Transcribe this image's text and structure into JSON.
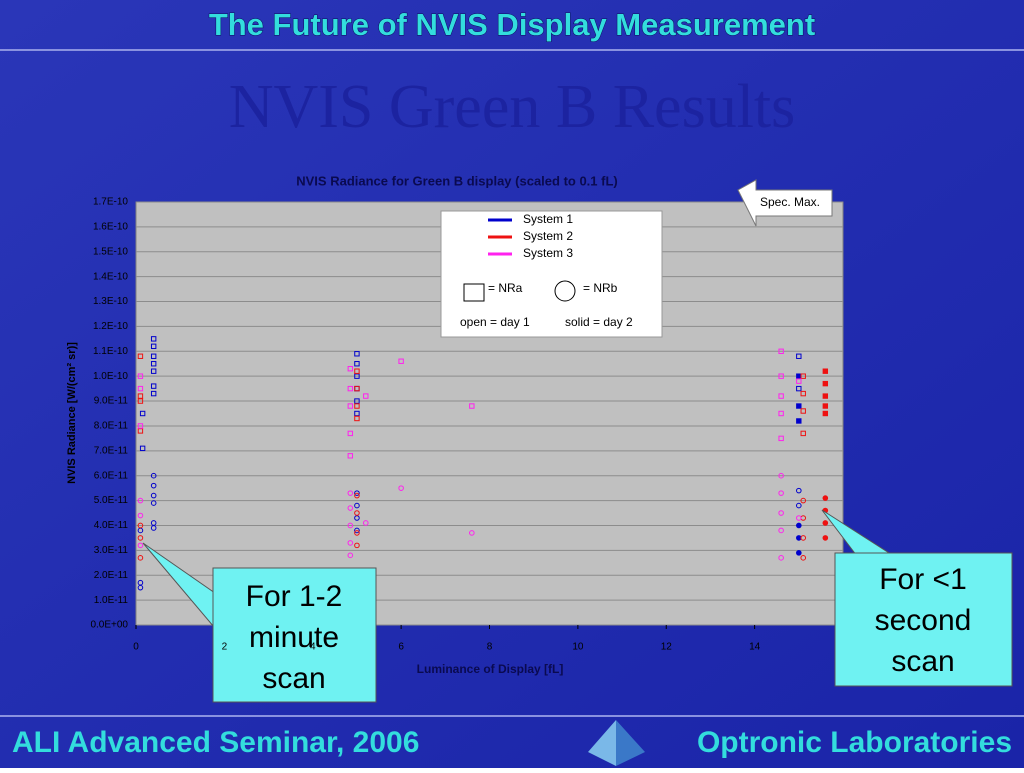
{
  "slide": {
    "header": "The Future of NVIS Display Measurement",
    "subtitle": "NVIS Green B Results",
    "footer_left": "ALI Advanced Seminar, 2006",
    "footer_right": "Optronic Laboratories",
    "callouts": [
      {
        "lines": [
          "For 1-2",
          "minute",
          "scan"
        ]
      },
      {
        "lines": [
          "For <1",
          "second",
          "scan"
        ]
      }
    ]
  },
  "chart_data": {
    "type": "scatter",
    "title": "NVIS Radiance for Green B display (scaled to 0.1 fL)",
    "xlabel": "Luminance of Display [fL]",
    "ylabel": "NVIS Radiance [W/(cm² sr)]",
    "annotation": "Spec. Max.",
    "xlim": [
      0,
      16
    ],
    "xticks": [
      0,
      2,
      4,
      6,
      8,
      10,
      12,
      14
    ],
    "ylim": [
      0,
      1.7e-10
    ],
    "yticks": [
      {
        "value": 0,
        "label": "0.0E+00"
      },
      {
        "value": 1e-11,
        "label": "1.0E-11"
      },
      {
        "value": 2e-11,
        "label": "2.0E-11"
      },
      {
        "value": 3e-11,
        "label": "3.0E-11"
      },
      {
        "value": 4e-11,
        "label": "4.0E-11"
      },
      {
        "value": 5e-11,
        "label": "5.0E-11"
      },
      {
        "value": 6e-11,
        "label": "6.0E-11"
      },
      {
        "value": 7e-11,
        "label": "7.0E-11"
      },
      {
        "value": 8e-11,
        "label": "8.0E-11"
      },
      {
        "value": 9e-11,
        "label": "9.0E-11"
      },
      {
        "value": 1e-10,
        "label": "1.0E-10"
      },
      {
        "value": 1.1e-10,
        "label": "1.1E-10"
      },
      {
        "value": 1.2e-10,
        "label": "1.2E-10"
      },
      {
        "value": 1.3e-10,
        "label": "1.3E-10"
      },
      {
        "value": 1.4e-10,
        "label": "1.4E-10"
      },
      {
        "value": 1.5e-10,
        "label": "1.5E-10"
      },
      {
        "value": 1.6e-10,
        "label": "1.6E-10"
      },
      {
        "value": 1.7e-10,
        "label": "1.7E-10"
      }
    ],
    "grid": true,
    "marker_legend": [
      "= NRa",
      "= NRb"
    ],
    "day_legend": [
      "open = day 1",
      "solid = day 2"
    ],
    "series": [
      {
        "name": "System 1",
        "color": "#0000cc",
        "x": [
          0.4,
          0.4,
          0.4,
          0.4,
          0.4,
          0.4,
          0.4,
          0.15,
          0.15,
          0.4,
          0.4,
          0.4,
          0.4,
          0.4,
          0.4,
          0.1,
          0.1,
          0.1,
          5,
          5,
          5,
          5,
          5,
          5,
          5,
          5,
          5,
          5,
          15,
          15,
          15,
          15,
          15,
          15,
          15,
          15,
          15,
          15
        ],
        "values": [
          1.15e-10,
          1.12e-10,
          1.08e-10,
          1.05e-10,
          1.02e-10,
          9.6e-11,
          9.3e-11,
          8.5e-11,
          7.1e-11,
          6e-11,
          5.6e-11,
          5.2e-11,
          4.9e-11,
          4.1e-11,
          3.9e-11,
          1.7e-11,
          1.5e-11,
          3.8e-11,
          1.09e-10,
          1.05e-10,
          1e-10,
          9.5e-11,
          9e-11,
          8.5e-11,
          5.3e-11,
          4.8e-11,
          4.3e-11,
          3.8e-11,
          1.08e-10,
          1e-10,
          9.5e-11,
          8.8e-11,
          8.2e-11,
          5.4e-11,
          4.8e-11,
          4e-11,
          3.5e-11,
          2.9e-11
        ],
        "markers": [
          "square",
          "square",
          "square",
          "square",
          "square",
          "square",
          "square",
          "square",
          "square",
          "circle",
          "circle",
          "circle",
          "circle",
          "circle",
          "circle",
          "circle",
          "circle",
          "circle",
          "square",
          "square",
          "square",
          "square",
          "square",
          "square",
          "circle",
          "circle",
          "circle",
          "circle",
          "square",
          "square",
          "square",
          "square",
          "square",
          "circle",
          "circle",
          "circle",
          "circle",
          "circle"
        ],
        "filled": [
          false,
          false,
          false,
          false,
          false,
          false,
          false,
          false,
          false,
          false,
          false,
          false,
          false,
          false,
          false,
          false,
          false,
          false,
          false,
          false,
          false,
          false,
          false,
          false,
          false,
          false,
          false,
          false,
          false,
          true,
          false,
          true,
          true,
          false,
          false,
          true,
          true,
          true
        ]
      },
      {
        "name": "System 2",
        "color": "#ee1111",
        "x": [
          0.1,
          0.1,
          0.1,
          0.1,
          0.1,
          0.1,
          0.1,
          5,
          5,
          5,
          5,
          5,
          5,
          5,
          5,
          15.1,
          15.1,
          15.1,
          15.1,
          15.1,
          15.1,
          15.1,
          15.1,
          15.6,
          15.6,
          15.6,
          15.6,
          15.6,
          15.6,
          15.6,
          15.6,
          15.6
        ],
        "values": [
          1.08e-10,
          9.2e-11,
          9e-11,
          7.8e-11,
          4e-11,
          3.5e-11,
          2.7e-11,
          1.02e-10,
          9.5e-11,
          8.8e-11,
          8.3e-11,
          5.2e-11,
          4.5e-11,
          3.7e-11,
          3.2e-11,
          1e-10,
          9.3e-11,
          8.6e-11,
          7.7e-11,
          5e-11,
          4.3e-11,
          3.5e-11,
          2.7e-11,
          1.02e-10,
          9.7e-11,
          9.2e-11,
          8.8e-11,
          8.5e-11,
          5.1e-11,
          4.6e-11,
          4.1e-11,
          3.5e-11
        ],
        "markers": [
          "square",
          "square",
          "square",
          "square",
          "circle",
          "circle",
          "circle",
          "square",
          "square",
          "square",
          "square",
          "circle",
          "circle",
          "circle",
          "circle",
          "square",
          "square",
          "square",
          "square",
          "circle",
          "circle",
          "circle",
          "circle",
          "square",
          "square",
          "square",
          "square",
          "square",
          "circle",
          "circle",
          "circle",
          "circle"
        ],
        "filled": [
          false,
          false,
          false,
          false,
          false,
          false,
          false,
          false,
          false,
          false,
          false,
          false,
          false,
          false,
          false,
          false,
          false,
          false,
          false,
          false,
          false,
          false,
          false,
          true,
          true,
          true,
          true,
          true,
          true,
          true,
          true,
          true
        ]
      },
      {
        "name": "System 3",
        "color": "#ff22ee",
        "x": [
          0.1,
          0.1,
          0.1,
          0.1,
          0.1,
          0.1,
          4.85,
          4.85,
          4.85,
          4.85,
          4.85,
          4.85,
          4.85,
          4.85,
          4.85,
          4.85,
          6,
          6,
          5.2,
          5.2,
          7.6,
          7.6,
          14.6,
          14.6,
          14.6,
          14.6,
          14.6,
          14.6,
          14.6,
          14.6,
          14.6,
          14.6,
          15,
          15
        ],
        "values": [
          1e-10,
          9.5e-11,
          8e-11,
          5e-11,
          4.4e-11,
          3.2e-11,
          1.03e-10,
          9.5e-11,
          8.8e-11,
          7.7e-11,
          6.8e-11,
          5.3e-11,
          4.7e-11,
          4e-11,
          3.3e-11,
          2.8e-11,
          1.06e-10,
          5.5e-11,
          9.2e-11,
          4.1e-11,
          8.8e-11,
          3.7e-11,
          1.1e-10,
          1e-10,
          9.2e-11,
          8.5e-11,
          7.5e-11,
          6e-11,
          5.3e-11,
          4.5e-11,
          3.8e-11,
          2.7e-11,
          9.8e-11,
          4.3e-11
        ],
        "markers": [
          "square",
          "square",
          "square",
          "circle",
          "circle",
          "circle",
          "square",
          "square",
          "square",
          "square",
          "square",
          "circle",
          "circle",
          "circle",
          "circle",
          "circle",
          "square",
          "circle",
          "square",
          "circle",
          "square",
          "circle",
          "square",
          "square",
          "square",
          "square",
          "square",
          "circle",
          "circle",
          "circle",
          "circle",
          "circle",
          "square",
          "circle"
        ],
        "filled": [
          false,
          false,
          false,
          false,
          false,
          false,
          false,
          false,
          false,
          false,
          false,
          false,
          false,
          false,
          false,
          false,
          false,
          false,
          false,
          false,
          false,
          false,
          false,
          false,
          false,
          false,
          false,
          false,
          false,
          false,
          false,
          false,
          false,
          false
        ]
      }
    ]
  }
}
